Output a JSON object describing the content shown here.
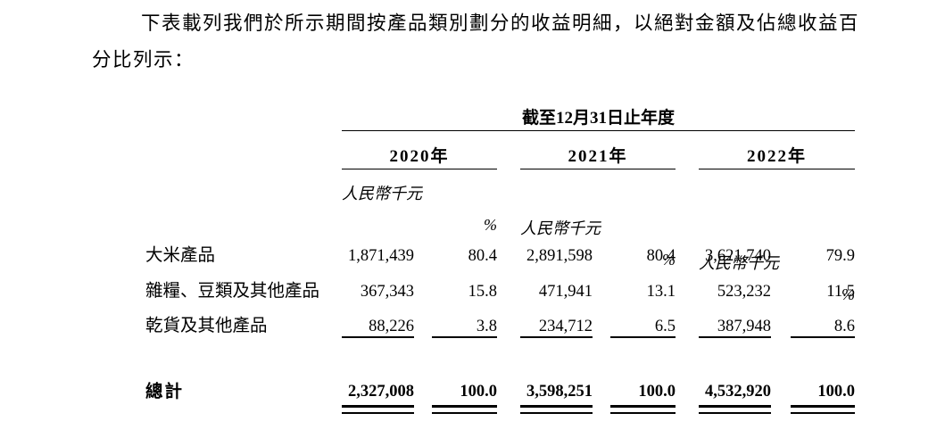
{
  "colors": {
    "text": "#000000",
    "background": "#ffffff",
    "rule": "#000000"
  },
  "intro": {
    "text": "下表載列我們於所示期間按產品類別劃分的收益明細，以絕對金額及佔總收益百分比列示："
  },
  "table": {
    "span_header": "截至12月31日止年度",
    "year_headers": [
      "2020年",
      "2021年",
      "2022年"
    ],
    "subheader_amount": "人民幣千元",
    "subheader_percent": "%",
    "rows": [
      {
        "label": "大米產品",
        "cells": [
          "1,871,439",
          "80.4",
          "2,891,598",
          "80.4",
          "3,621,740",
          "79.9"
        ]
      },
      {
        "label": "雜糧、豆類及其他產品",
        "cells": [
          "367,343",
          "15.8",
          "471,941",
          "13.1",
          "523,232",
          "11.5"
        ]
      },
      {
        "label": "乾貨及其他產品",
        "cells": [
          "88,226",
          "3.8",
          "234,712",
          "6.5",
          "387,948",
          "8.6"
        ]
      }
    ],
    "total_row": {
      "label": "總計",
      "cells": [
        "2,327,008",
        "100.0",
        "3,598,251",
        "100.0",
        "4,532,920",
        "100.0"
      ]
    }
  }
}
